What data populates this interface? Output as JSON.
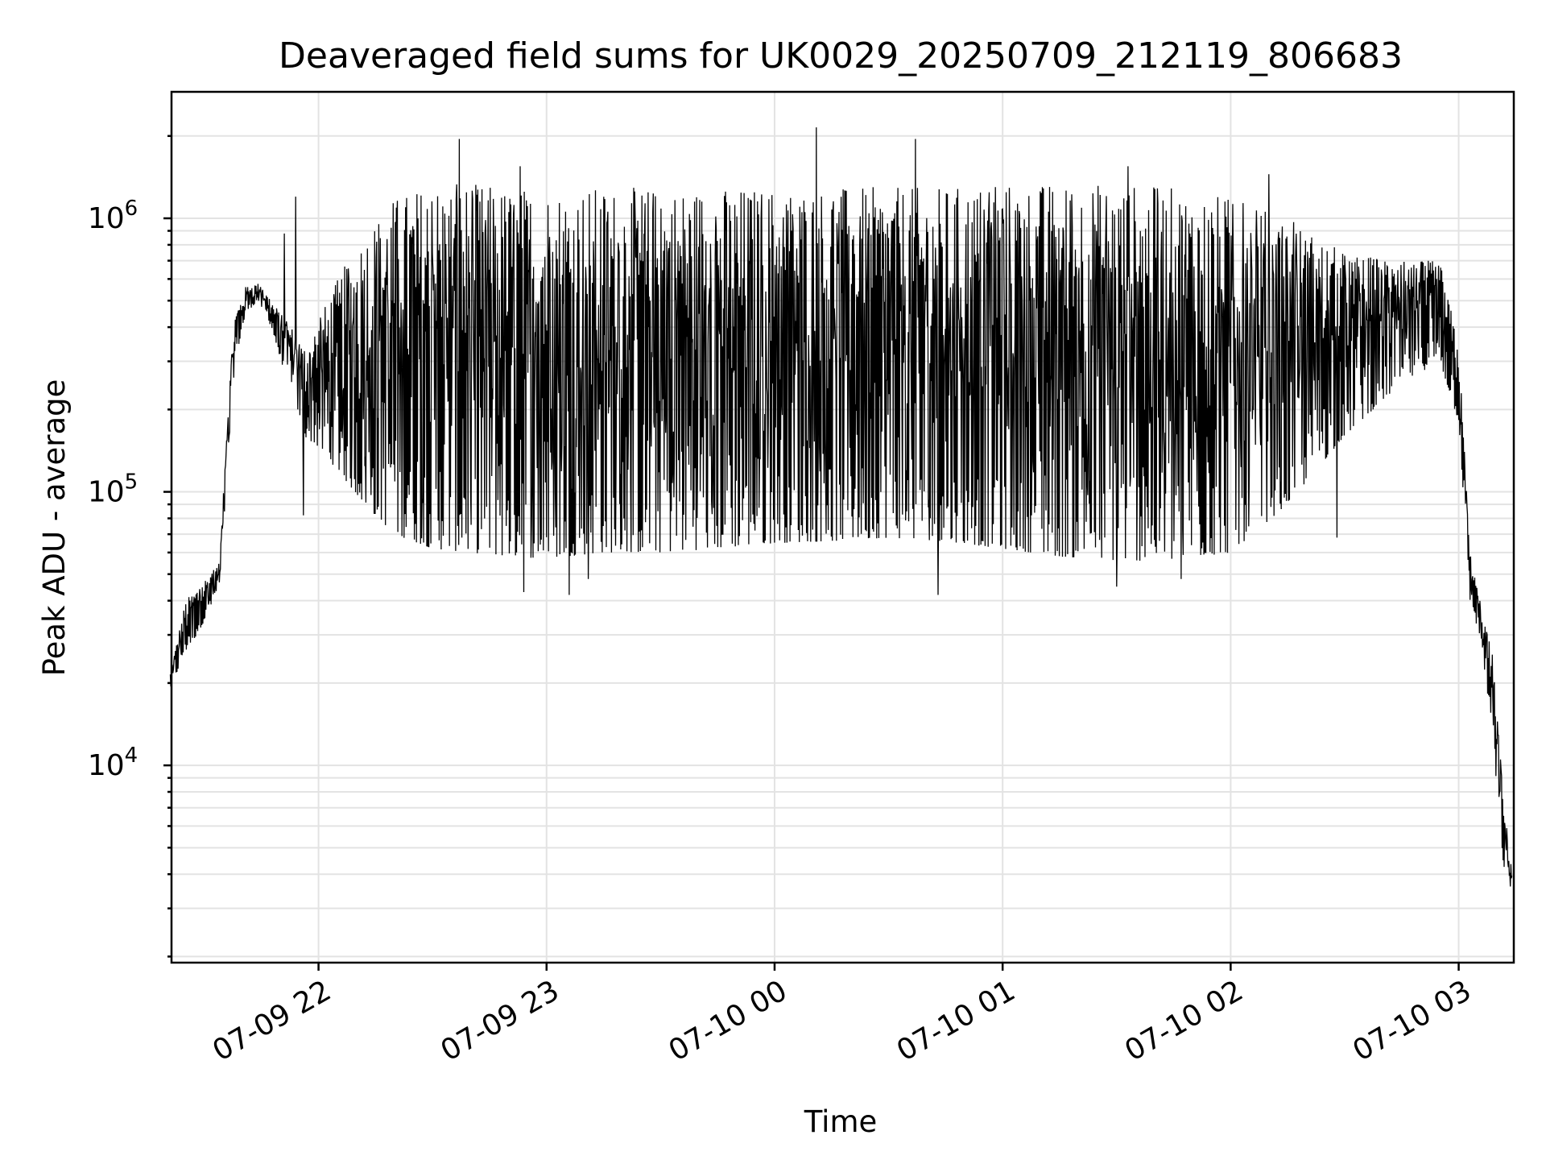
{
  "chart_data": {
    "type": "line",
    "title": "Deaveraged field sums for UK0029_20250709_212119_806683",
    "xlabel": "Time",
    "ylabel": "Peak ADU - average",
    "yscale": "log",
    "ylim": [
      1900,
      2900000
    ],
    "xlim": [
      "2025-07-09 21:21:19",
      "2025-07-10 03:14:30"
    ],
    "grid": true,
    "line_color": "#000000",
    "x_ticks": [
      {
        "time": "2025-07-09 22:00",
        "label": "07-09 22"
      },
      {
        "time": "2025-07-09 23:00",
        "label": "07-09 23"
      },
      {
        "time": "2025-07-10 00:00",
        "label": "07-10 00"
      },
      {
        "time": "2025-07-10 01:00",
        "label": "07-10 01"
      },
      {
        "time": "2025-07-10 02:00",
        "label": "07-10 02"
      },
      {
        "time": "2025-07-10 03:00",
        "label": "07-10 03"
      }
    ],
    "y_ticks": [
      {
        "value": 10000,
        "base": "10",
        "exp": "4"
      },
      {
        "value": 100000,
        "base": "10",
        "exp": "5"
      },
      {
        "value": 1000000,
        "base": "10",
        "exp": "6"
      }
    ],
    "series": [
      {
        "name": "",
        "x": [
          "2025-07-09 21:21",
          "2025-07-09 21:25",
          "2025-07-09 21:28",
          "2025-07-09 21:31",
          "2025-07-09 21:34",
          "2025-07-09 21:36",
          "2025-07-09 21:38",
          "2025-07-09 21:41",
          "2025-07-09 21:44",
          "2025-07-09 21:47",
          "2025-07-09 21:50",
          "2025-07-09 21:53",
          "2025-07-09 21:56",
          "2025-07-09 21:59",
          "2025-07-09 22:05",
          "2025-07-09 22:12",
          "2025-07-09 22:20",
          "2025-07-09 22:30",
          "2025-07-09 22:40",
          "2025-07-09 22:50",
          "2025-07-09 23:00",
          "2025-07-09 23:15",
          "2025-07-09 23:30",
          "2025-07-09 23:45",
          "2025-07-10 00:00",
          "2025-07-10 00:15",
          "2025-07-10 00:30",
          "2025-07-10 00:45",
          "2025-07-10 01:00",
          "2025-07-10 01:15",
          "2025-07-10 01:30",
          "2025-07-10 01:45",
          "2025-07-10 02:00",
          "2025-07-10 02:15",
          "2025-07-10 02:30",
          "2025-07-10 02:45",
          "2025-07-10 02:55",
          "2025-07-10 03:00",
          "2025-07-10 03:03",
          "2025-07-10 03:06",
          "2025-07-10 03:09",
          "2025-07-10 03:12",
          "2025-07-10 03:14"
        ],
        "lower": [
          19000,
          26000,
          30000,
          36000,
          45000,
          120000,
          300000,
          450000,
          500000,
          420000,
          300000,
          250000,
          160000,
          150000,
          120000,
          90000,
          70000,
          62000,
          60000,
          58000,
          57000,
          60000,
          60000,
          62000,
          65000,
          66000,
          68000,
          66000,
          62000,
          58000,
          56000,
          56000,
          60000,
          90000,
          160000,
          250000,
          300000,
          180000,
          40000,
          28000,
          12000,
          4000,
          3500
        ],
        "upper": [
          22000,
          40000,
          45000,
          50000,
          55000,
          200000,
          450000,
          570000,
          580000,
          520000,
          450000,
          400000,
          350000,
          400000,
          600000,
          900000,
          1200000,
          1350000,
          1350000,
          1300000,
          1300000,
          1300000,
          1300000,
          1300000,
          1300000,
          1300000,
          1300000,
          1300000,
          1350000,
          1350000,
          1350000,
          1300000,
          1200000,
          1000000,
          750000,
          700000,
          700000,
          350000,
          60000,
          38000,
          25000,
          7000,
          4200
        ],
        "spikes": [
          {
            "time": "2025-07-09 21:51",
            "value": 880000
          },
          {
            "time": "2025-07-09 21:54",
            "value": 1200000
          },
          {
            "time": "2025-07-09 22:37",
            "value": 1950000
          },
          {
            "time": "2025-07-09 22:53",
            "value": 1550000
          },
          {
            "time": "2025-07-10 00:11",
            "value": 2150000
          },
          {
            "time": "2025-07-10 00:37",
            "value": 1950000
          },
          {
            "time": "2025-07-10 01:33",
            "value": 1550000
          },
          {
            "time": "2025-07-10 02:10",
            "value": 1450000
          }
        ],
        "dips": [
          {
            "time": "2025-07-09 21:56",
            "value": 82000
          },
          {
            "time": "2025-07-09 22:54",
            "value": 43000
          },
          {
            "time": "2025-07-09 23:06",
            "value": 42000
          },
          {
            "time": "2025-07-09 23:11",
            "value": 48000
          },
          {
            "time": "2025-07-10 00:43",
            "value": 42000
          },
          {
            "time": "2025-07-10 01:30",
            "value": 45000
          },
          {
            "time": "2025-07-10 01:47",
            "value": 48000
          },
          {
            "time": "2025-07-10 02:28",
            "value": 68000
          }
        ]
      }
    ]
  }
}
